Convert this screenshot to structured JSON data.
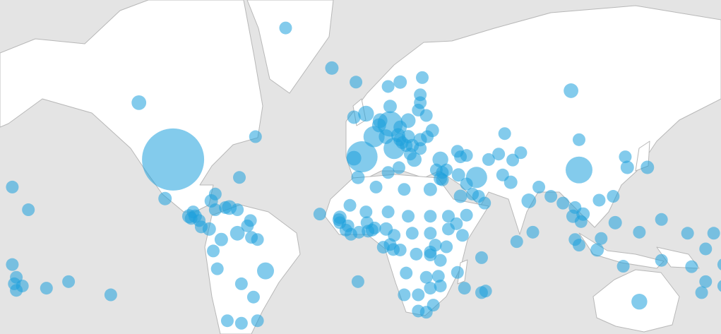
{
  "map": {
    "bubble_color": "#1ea0dc",
    "bubble_opacity": 0.55,
    "bubbles": [
      {
        "lon": -98,
        "lat": 39,
        "value": 215
      },
      {
        "lon": -115,
        "lat": 57,
        "value": 12
      },
      {
        "lon": -42,
        "lat": 72,
        "value": 9
      },
      {
        "lon": -19,
        "lat": 65,
        "value": 10
      },
      {
        "lon": 100,
        "lat": 60,
        "value": 12
      },
      {
        "lon": 104,
        "lat": 35,
        "value": 40
      },
      {
        "lon": 104,
        "lat": 46,
        "value": 9
      },
      {
        "lon": 67,
        "lat": 48,
        "value": 9
      },
      {
        "lon": -102,
        "lat": 23,
        "value": 10
      },
      {
        "lon": -79,
        "lat": 22,
        "value": 10
      },
      {
        "lon": -72,
        "lat": 19,
        "value": 9
      },
      {
        "lon": -70,
        "lat": 19,
        "value": 12
      },
      {
        "lon": -77,
        "lat": 18,
        "value": 9
      },
      {
        "lon": -66,
        "lat": 18,
        "value": 9
      },
      {
        "lon": -90,
        "lat": 15,
        "value": 11
      },
      {
        "lon": -87,
        "lat": 15,
        "value": 10
      },
      {
        "lon": -89,
        "lat": 14,
        "value": 9
      },
      {
        "lon": -85,
        "lat": 13,
        "value": 9
      },
      {
        "lon": -84,
        "lat": 10,
        "value": 9
      },
      {
        "lon": -80,
        "lat": 9,
        "value": 10
      },
      {
        "lon": -77,
        "lat": 25,
        "value": 9
      },
      {
        "lon": -88,
        "lat": 17,
        "value": 9
      },
      {
        "lon": -66,
        "lat": 7,
        "value": 12
      },
      {
        "lon": -74,
        "lat": 4,
        "value": 10
      },
      {
        "lon": -61,
        "lat": 10.5,
        "value": 9
      },
      {
        "lon": -59.5,
        "lat": 13,
        "value": 9
      },
      {
        "lon": -59,
        "lat": 5,
        "value": 9
      },
      {
        "lon": -56,
        "lat": 4,
        "value": 9
      },
      {
        "lon": -78,
        "lat": -1.5,
        "value": 9
      },
      {
        "lon": -76,
        "lat": -10,
        "value": 9
      },
      {
        "lon": -64,
        "lat": -17,
        "value": 9
      },
      {
        "lon": -52,
        "lat": -11,
        "value": 16
      },
      {
        "lon": -58,
        "lat": -23,
        "value": 9
      },
      {
        "lon": -71,
        "lat": -33,
        "value": 9
      },
      {
        "lon": -64,
        "lat": -34,
        "value": 9
      },
      {
        "lon": -56,
        "lat": -33,
        "value": 9
      },
      {
        "lon": -178,
        "lat": 28,
        "value": 9
      },
      {
        "lon": -170,
        "lat": 18,
        "value": 9
      },
      {
        "lon": -178,
        "lat": -8,
        "value": 9
      },
      {
        "lon": -176,
        "lat": -14,
        "value": 9
      },
      {
        "lon": -177,
        "lat": -17,
        "value": 9
      },
      {
        "lon": -173,
        "lat": -18,
        "value": 9
      },
      {
        "lon": -176,
        "lat": -20,
        "value": 9
      },
      {
        "lon": -161,
        "lat": -19,
        "value": 9
      },
      {
        "lon": -150,
        "lat": -16,
        "value": 9
      },
      {
        "lon": -129,
        "lat": -22,
        "value": 9
      },
      {
        "lon": -65,
        "lat": 32,
        "value": 9
      },
      {
        "lon": -57,
        "lat": 47,
        "value": 9
      },
      {
        "lon": -6,
        "lat": -16,
        "value": 9
      },
      {
        "lon": -25,
        "lat": 16,
        "value": 9
      },
      {
        "lon": -2,
        "lat": 54,
        "value": 14
      },
      {
        "lon": -8,
        "lat": 53,
        "value": 10
      },
      {
        "lon": 9,
        "lat": 61,
        "value": 9
      },
      {
        "lon": 15,
        "lat": 62,
        "value": 10
      },
      {
        "lon": 26,
        "lat": 63,
        "value": 9
      },
      {
        "lon": 25,
        "lat": 59,
        "value": 9
      },
      {
        "lon": 25,
        "lat": 57,
        "value": 9
      },
      {
        "lon": 24,
        "lat": 55,
        "value": 9
      },
      {
        "lon": 10,
        "lat": 56,
        "value": 10
      },
      {
        "lon": 5,
        "lat": 52,
        "value": 12
      },
      {
        "lon": 4.5,
        "lat": 50.6,
        "value": 11
      },
      {
        "lon": 10,
        "lat": 51,
        "value": 36
      },
      {
        "lon": 2,
        "lat": 47,
        "value": 25
      },
      {
        "lon": -4,
        "lat": 40,
        "value": 54
      },
      {
        "lon": -8,
        "lat": 39.5,
        "value": 12
      },
      {
        "lon": 12,
        "lat": 43,
        "value": 25
      },
      {
        "lon": 8,
        "lat": 47,
        "value": 12
      },
      {
        "lon": 14,
        "lat": 47.5,
        "value": 11
      },
      {
        "lon": 19,
        "lat": 52,
        "value": 12
      },
      {
        "lon": 15,
        "lat": 50,
        "value": 10
      },
      {
        "lon": 19,
        "lat": 47,
        "value": 10
      },
      {
        "lon": 25,
        "lat": 46,
        "value": 10
      },
      {
        "lon": 25,
        "lat": 43,
        "value": 9
      },
      {
        "lon": 22,
        "lat": 39,
        "value": 12
      },
      {
        "lon": 35,
        "lat": 39,
        "value": 14
      },
      {
        "lon": 31,
        "lat": 49,
        "value": 10
      },
      {
        "lon": 28,
        "lat": 53.5,
        "value": 9
      },
      {
        "lon": 21,
        "lat": 44,
        "value": 10
      },
      {
        "lon": 16,
        "lat": 45,
        "value": 9
      },
      {
        "lon": 14.8,
        "lat": 46,
        "value": 9
      },
      {
        "lon": 18,
        "lat": 44,
        "value": 9
      },
      {
        "lon": 20,
        "lat": 41,
        "value": 9
      },
      {
        "lon": 28.5,
        "lat": 47,
        "value": 9
      },
      {
        "lon": 33,
        "lat": 35,
        "value": 9
      },
      {
        "lon": 14.4,
        "lat": 35.9,
        "value": 9
      },
      {
        "lon": -7,
        "lat": 62,
        "value": 9
      },
      {
        "lon": 43.5,
        "lat": 42,
        "value": 9
      },
      {
        "lon": 45,
        "lat": 40,
        "value": 9
      },
      {
        "lon": 48,
        "lat": 40.5,
        "value": 9
      },
      {
        "lon": 35,
        "lat": 31.5,
        "value": 10
      },
      {
        "lon": 36,
        "lat": 34,
        "value": 9
      },
      {
        "lon": 36,
        "lat": 31,
        "value": 9
      },
      {
        "lon": 38,
        "lat": 35,
        "value": 9
      },
      {
        "lon": 44,
        "lat": 33,
        "value": 10
      },
      {
        "lon": 53,
        "lat": 32,
        "value": 25
      },
      {
        "lon": 45,
        "lat": 24,
        "value": 10
      },
      {
        "lon": 48,
        "lat": 29.3,
        "value": 9
      },
      {
        "lon": 54,
        "lat": 24,
        "value": 9
      },
      {
        "lon": 57,
        "lat": 21,
        "value": 9
      },
      {
        "lon": 48,
        "lat": 15.5,
        "value": 9
      },
      {
        "lon": 51,
        "lat": 25,
        "value": 9
      },
      {
        "lon": 30,
        "lat": 27,
        "value": 10
      },
      {
        "lon": 66,
        "lat": 33,
        "value": 9
      },
      {
        "lon": 70,
        "lat": 30,
        "value": 10
      },
      {
        "lon": 79,
        "lat": 22,
        "value": 12
      },
      {
        "lon": 84,
        "lat": 28,
        "value": 9
      },
      {
        "lon": 90,
        "lat": 24,
        "value": 9
      },
      {
        "lon": 81,
        "lat": 7.5,
        "value": 9
      },
      {
        "lon": 73,
        "lat": 3,
        "value": 9
      },
      {
        "lon": 64,
        "lat": 41,
        "value": 9
      },
      {
        "lon": 59,
        "lat": 39,
        "value": 9
      },
      {
        "lon": 75,
        "lat": 41.5,
        "value": 9
      },
      {
        "lon": 71,
        "lat": 38.8,
        "value": 9
      },
      {
        "lon": 138,
        "lat": 36,
        "value": 10
      },
      {
        "lon": 128,
        "lat": 36,
        "value": 10
      },
      {
        "lon": 127,
        "lat": 40,
        "value": 9
      },
      {
        "lon": 121,
        "lat": 24,
        "value": 9
      },
      {
        "lon": 114,
        "lat": 22.3,
        "value": 9
      },
      {
        "lon": 106,
        "lat": 16,
        "value": 10
      },
      {
        "lon": 102,
        "lat": 19,
        "value": 9
      },
      {
        "lon": 101,
        "lat": 15,
        "value": 10
      },
      {
        "lon": 96,
        "lat": 21,
        "value": 9
      },
      {
        "lon": 105,
        "lat": 12.5,
        "value": 9
      },
      {
        "lon": 102,
        "lat": 4,
        "value": 9
      },
      {
        "lon": 104,
        "lat": 1.3,
        "value": 9
      },
      {
        "lon": 113,
        "lat": -1,
        "value": 10
      },
      {
        "lon": 122,
        "lat": 12,
        "value": 10
      },
      {
        "lon": 115,
        "lat": 4.5,
        "value": 9
      },
      {
        "lon": 126,
        "lat": -8.8,
        "value": 9
      },
      {
        "lon": 145,
        "lat": -6,
        "value": 9
      },
      {
        "lon": 134,
        "lat": -25,
        "value": 14
      },
      {
        "lon": 134,
        "lat": 7.5,
        "value": 9
      },
      {
        "lon": 158,
        "lat": 7,
        "value": 9
      },
      {
        "lon": 171,
        "lat": 7,
        "value": 9
      },
      {
        "lon": 167,
        "lat": -0.5,
        "value": 9
      },
      {
        "lon": 160,
        "lat": -9,
        "value": 9
      },
      {
        "lon": 167,
        "lat": -16,
        "value": 9
      },
      {
        "lon": 165,
        "lat": -21,
        "value": 9
      },
      {
        "lon": 145,
        "lat": 13.5,
        "value": 9
      },
      {
        "lon": 176,
        "lat": -8,
        "value": 9
      },
      {
        "lon": 176,
        "lat": -18,
        "value": 9
      },
      {
        "lon": -6,
        "lat": 32,
        "value": 10
      },
      {
        "lon": 3,
        "lat": 28,
        "value": 9
      },
      {
        "lon": 9,
        "lat": 34,
        "value": 9
      },
      {
        "lon": 17,
        "lat": 27,
        "value": 9
      },
      {
        "lon": -10,
        "lat": 20,
        "value": 9
      },
      {
        "lon": -2,
        "lat": 17,
        "value": 9
      },
      {
        "lon": 9,
        "lat": 17,
        "value": 9
      },
      {
        "lon": 19,
        "lat": 15,
        "value": 9
      },
      {
        "lon": 30,
        "lat": 15,
        "value": 9
      },
      {
        "lon": -15,
        "lat": 14.5,
        "value": 10
      },
      {
        "lon": -15.5,
        "lat": 13.4,
        "value": 9
      },
      {
        "lon": -15,
        "lat": 12,
        "value": 9
      },
      {
        "lon": -11,
        "lat": 10.5,
        "value": 9
      },
      {
        "lon": -12,
        "lat": 8.5,
        "value": 9
      },
      {
        "lon": -9.5,
        "lat": 6.5,
        "value": 9
      },
      {
        "lon": -5.5,
        "lat": 7.5,
        "value": 9
      },
      {
        "lon": -1.5,
        "lat": 12,
        "value": 9
      },
      {
        "lon": -1,
        "lat": 8,
        "value": 9
      },
      {
        "lon": 1,
        "lat": 8.5,
        "value": 9
      },
      {
        "lon": 2.3,
        "lat": 9.5,
        "value": 9
      },
      {
        "lon": 8,
        "lat": 9,
        "value": 10
      },
      {
        "lon": 12,
        "lat": 6,
        "value": 9
      },
      {
        "lon": 21,
        "lat": 7,
        "value": 9
      },
      {
        "lon": 30,
        "lat": 7,
        "value": 9
      },
      {
        "lon": 39,
        "lat": 9,
        "value": 9
      },
      {
        "lon": 39,
        "lat": 15,
        "value": 9
      },
      {
        "lon": 43,
        "lat": 11.5,
        "value": 9
      },
      {
        "lon": 46,
        "lat": 6,
        "value": 9
      },
      {
        "lon": 38,
        "lat": 0.5,
        "value": 9
      },
      {
        "lon": 32.5,
        "lat": 1.3,
        "value": 9
      },
      {
        "lon": 30,
        "lat": -2,
        "value": 9
      },
      {
        "lon": 30,
        "lat": -3.4,
        "value": 9
      },
      {
        "lon": 35,
        "lat": -6,
        "value": 9
      },
      {
        "lon": 23,
        "lat": -3,
        "value": 9
      },
      {
        "lon": 15,
        "lat": -1,
        "value": 9
      },
      {
        "lon": 11.6,
        "lat": -0.8,
        "value": 9
      },
      {
        "lon": 10,
        "lat": 1.6,
        "value": 9
      },
      {
        "lon": 6.6,
        "lat": 0.3,
        "value": 9
      },
      {
        "lon": 18,
        "lat": -12,
        "value": 9
      },
      {
        "lon": 28,
        "lat": -14,
        "value": 9
      },
      {
        "lon": 34,
        "lat": -13.5,
        "value": 9
      },
      {
        "lon": 35,
        "lat": -18,
        "value": 9
      },
      {
        "lon": 30,
        "lat": -19,
        "value": 9
      },
      {
        "lon": 24,
        "lat": -22,
        "value": 9
      },
      {
        "lon": 17,
        "lat": -22,
        "value": 9
      },
      {
        "lon": 24,
        "lat": -29,
        "value": 9
      },
      {
        "lon": 28,
        "lat": -29.5,
        "value": 9
      },
      {
        "lon": 31.5,
        "lat": -26.5,
        "value": 9
      },
      {
        "lon": 47,
        "lat": -19,
        "value": 9
      },
      {
        "lon": 57.5,
        "lat": -20.3,
        "value": 9
      },
      {
        "lon": 55.5,
        "lat": -21,
        "value": 9
      },
      {
        "lon": 43.5,
        "lat": -11.7,
        "value": 9
      },
      {
        "lon": 55.5,
        "lat": -4.7,
        "value": 9
      }
    ]
  }
}
